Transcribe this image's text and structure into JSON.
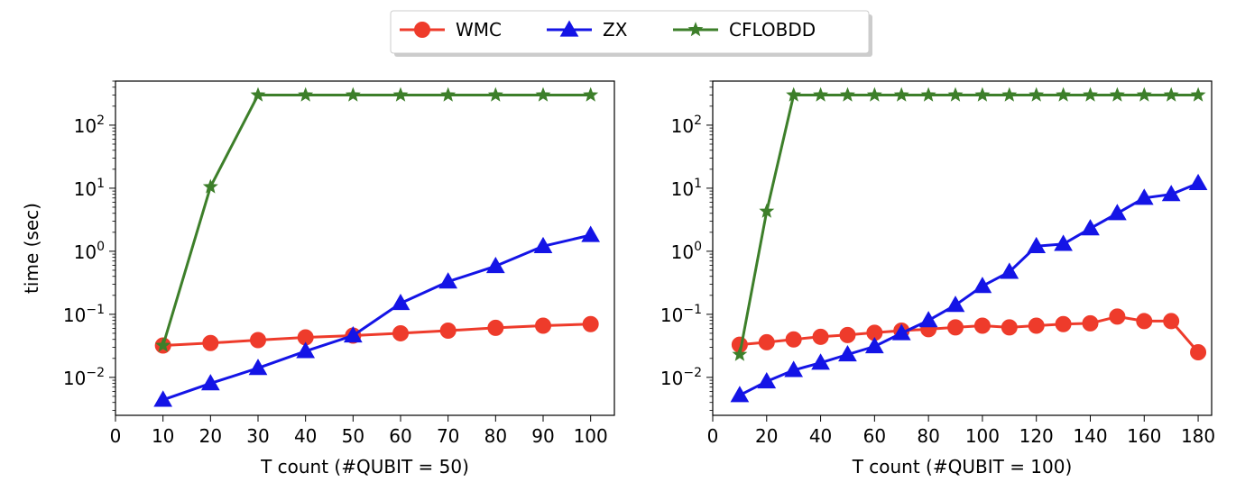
{
  "legend": {
    "placement": "top-center",
    "entries": [
      {
        "label": "WMC",
        "color": "#ee3b2b",
        "marker": "circle"
      },
      {
        "label": "ZX",
        "color": "#1414e6",
        "marker": "triangle"
      },
      {
        "label": "CFLOBDD",
        "color": "#3d7f2a",
        "marker": "star"
      }
    ]
  },
  "chart_data": [
    {
      "type": "line",
      "xlabel": "T count (#QUBIT = 50)",
      "ylabel": "time (sec)",
      "xlim": [
        0,
        105
      ],
      "ylim": [
        0.0025,
        500
      ],
      "yscale": "log",
      "grid": false,
      "x_ticks": [
        0,
        10,
        20,
        30,
        40,
        50,
        60,
        70,
        80,
        90,
        100
      ],
      "y_ticks": [
        0.01,
        0.1,
        1,
        10,
        100
      ],
      "y_tick_labels": [
        {
          "base": "10",
          "exp": "−2"
        },
        {
          "base": "10",
          "exp": "−1"
        },
        {
          "base": "10",
          "exp": "0"
        },
        {
          "base": "10",
          "exp": "1"
        },
        {
          "base": "10",
          "exp": "2"
        }
      ],
      "series": [
        {
          "name": "WMC",
          "x": [
            10,
            20,
            30,
            40,
            50,
            60,
            70,
            80,
            90,
            100
          ],
          "y": [
            0.032,
            0.035,
            0.039,
            0.043,
            0.046,
            0.05,
            0.055,
            0.061,
            0.066,
            0.07
          ]
        },
        {
          "name": "ZX",
          "x": [
            10,
            20,
            30,
            40,
            50,
            60,
            70,
            80,
            90,
            100
          ],
          "y": [
            0.0044,
            0.008,
            0.014,
            0.026,
            0.046,
            0.15,
            0.33,
            0.58,
            1.2,
            1.8
          ]
        },
        {
          "name": "CFLOBDD",
          "x": [
            10,
            20,
            30,
            40,
            50,
            60,
            70,
            80,
            90,
            100
          ],
          "y": [
            0.032,
            10.5,
            300,
            300,
            300,
            300,
            300,
            300,
            300,
            300
          ]
        }
      ]
    },
    {
      "type": "line",
      "xlabel": "T count (#QUBIT = 100)",
      "ylabel": "",
      "xlim": [
        0,
        185
      ],
      "ylim": [
        0.0025,
        500
      ],
      "yscale": "log",
      "grid": false,
      "x_ticks": [
        0,
        20,
        40,
        60,
        80,
        100,
        120,
        140,
        160,
        180
      ],
      "y_ticks": [
        0.01,
        0.1,
        1,
        10,
        100
      ],
      "y_tick_labels": [
        {
          "base": "10",
          "exp": "−2"
        },
        {
          "base": "10",
          "exp": "−1"
        },
        {
          "base": "10",
          "exp": "0"
        },
        {
          "base": "10",
          "exp": "1"
        },
        {
          "base": "10",
          "exp": "2"
        }
      ],
      "series": [
        {
          "name": "WMC",
          "x": [
            10,
            20,
            30,
            40,
            50,
            60,
            70,
            80,
            90,
            100,
            110,
            120,
            130,
            140,
            150,
            160,
            170,
            180
          ],
          "y": [
            0.033,
            0.036,
            0.04,
            0.044,
            0.047,
            0.051,
            0.055,
            0.058,
            0.062,
            0.066,
            0.062,
            0.066,
            0.07,
            0.072,
            0.092,
            0.078,
            0.078,
            0.025
          ]
        },
        {
          "name": "ZX",
          "x": [
            10,
            20,
            30,
            40,
            50,
            60,
            70,
            80,
            90,
            100,
            110,
            120,
            130,
            140,
            150,
            160,
            170,
            180
          ],
          "y": [
            0.0052,
            0.0086,
            0.013,
            0.017,
            0.023,
            0.031,
            0.05,
            0.08,
            0.14,
            0.28,
            0.47,
            1.2,
            1.3,
            2.3,
            4.0,
            7.0,
            8.0,
            12.0
          ]
        },
        {
          "name": "CFLOBDD",
          "x": [
            10,
            20,
            30,
            40,
            50,
            60,
            70,
            80,
            90,
            100,
            110,
            120,
            130,
            140,
            150,
            160,
            170,
            180
          ],
          "y": [
            0.023,
            4.3,
            300,
            300,
            300,
            300,
            300,
            300,
            300,
            300,
            300,
            300,
            300,
            300,
            300,
            300,
            300,
            300
          ]
        }
      ]
    }
  ]
}
